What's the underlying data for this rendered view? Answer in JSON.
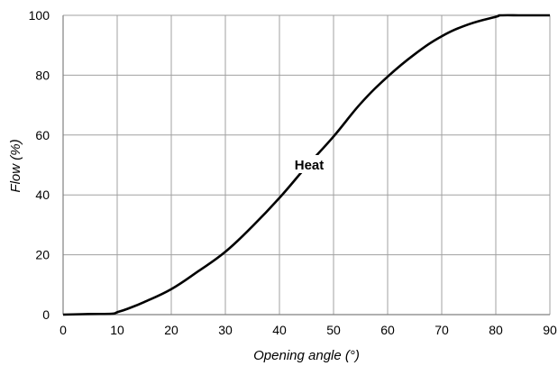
{
  "chart_data": {
    "type": "line",
    "xlabel": "Opening angle  (°)",
    "ylabel": "Flow  (%)",
    "xlim": [
      0,
      90
    ],
    "ylim": [
      0,
      100
    ],
    "x_ticks": [
      "0",
      "10",
      "20",
      "30",
      "40",
      "50",
      "60",
      "70",
      "80",
      "90"
    ],
    "y_ticks": [
      "0",
      "20",
      "40",
      "60",
      "80",
      "100"
    ],
    "grid": true,
    "series": [
      {
        "name": "Heat",
        "x": [
          0,
          5,
          9,
          10,
          12,
          15,
          20,
          25,
          30,
          35,
          40,
          45,
          50,
          55,
          60,
          65,
          70,
          75,
          80,
          81,
          85,
          90
        ],
        "y": [
          0,
          0.2,
          0.3,
          0.8,
          2,
          4.2,
          8.5,
          14.5,
          21,
          29.5,
          39,
          49.5,
          59.5,
          70.5,
          79.5,
          87,
          93,
          97,
          99.5,
          100,
          100,
          100
        ]
      }
    ],
    "annotations": [
      {
        "text": "Heat",
        "x": 45.5,
        "y": 50
      }
    ],
    "line_color": "#000000",
    "grid_color": "#a0a0a0"
  }
}
